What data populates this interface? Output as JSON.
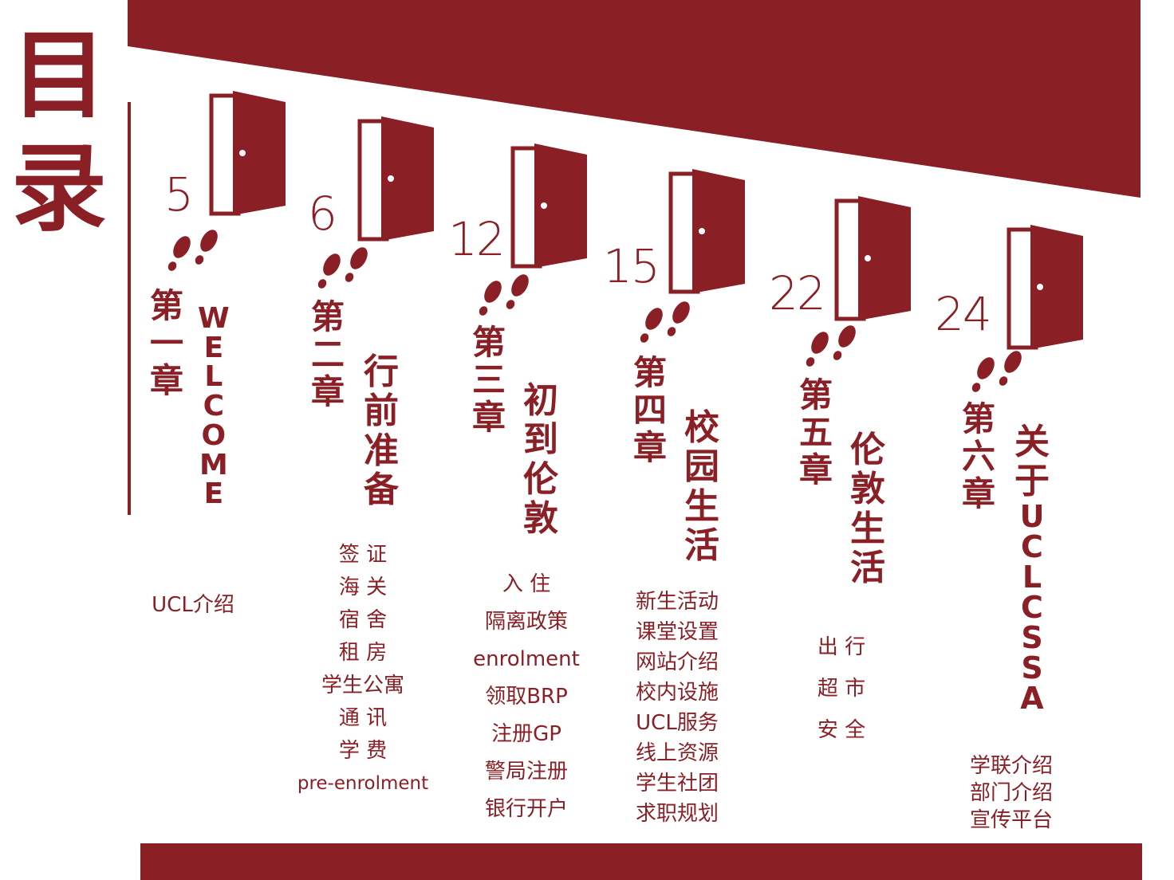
{
  "title": [
    "目",
    "录"
  ],
  "colors": {
    "brand": "#8b1f26",
    "background": "#ffffff"
  },
  "chapters": [
    {
      "page": "5",
      "chapter": [
        "第",
        "一",
        "章"
      ],
      "name": [
        "W",
        "E",
        "L",
        "C",
        "O",
        "M",
        "E"
      ],
      "items": [
        "UCL介绍"
      ]
    },
    {
      "page": "6",
      "chapter": [
        "第",
        "二",
        "章"
      ],
      "name": [
        "行",
        "前",
        "准",
        "备"
      ],
      "items": [
        "签 证",
        "海 关",
        "宿 舍",
        "租 房",
        "学生公寓",
        "通 讯",
        "学 费",
        "pre-enrolment"
      ]
    },
    {
      "page": "12",
      "chapter": [
        "第",
        "三",
        "章"
      ],
      "name": [
        "初",
        "到",
        "伦",
        "敦"
      ],
      "items": [
        "入 住",
        "隔离政策",
        "enrolment",
        "领取BRP",
        "注册GP",
        "警局注册",
        "银行开户"
      ]
    },
    {
      "page": "15",
      "chapter": [
        "第",
        "四",
        "章"
      ],
      "name": [
        "校",
        "园",
        "生",
        "活"
      ],
      "items": [
        "新生活动",
        "课堂设置",
        "网站介绍",
        "校内设施",
        "UCL服务",
        "线上资源",
        "学生社团",
        "求职规划"
      ]
    },
    {
      "page": "22",
      "chapter": [
        "第",
        "五",
        "章"
      ],
      "name": [
        "伦",
        "敦",
        "生",
        "活"
      ],
      "items": [
        "出 行",
        "超 市",
        "安 全"
      ]
    },
    {
      "page": "24",
      "chapter": [
        "第",
        "六",
        "章"
      ],
      "name": [
        "关",
        "于",
        "U",
        "C",
        "L",
        "C",
        "S",
        "S",
        "A"
      ],
      "items": [
        "学联介绍",
        "部门介绍",
        "宣传平台"
      ]
    }
  ],
  "icons": [
    "door-icon",
    "footprints-icon"
  ]
}
